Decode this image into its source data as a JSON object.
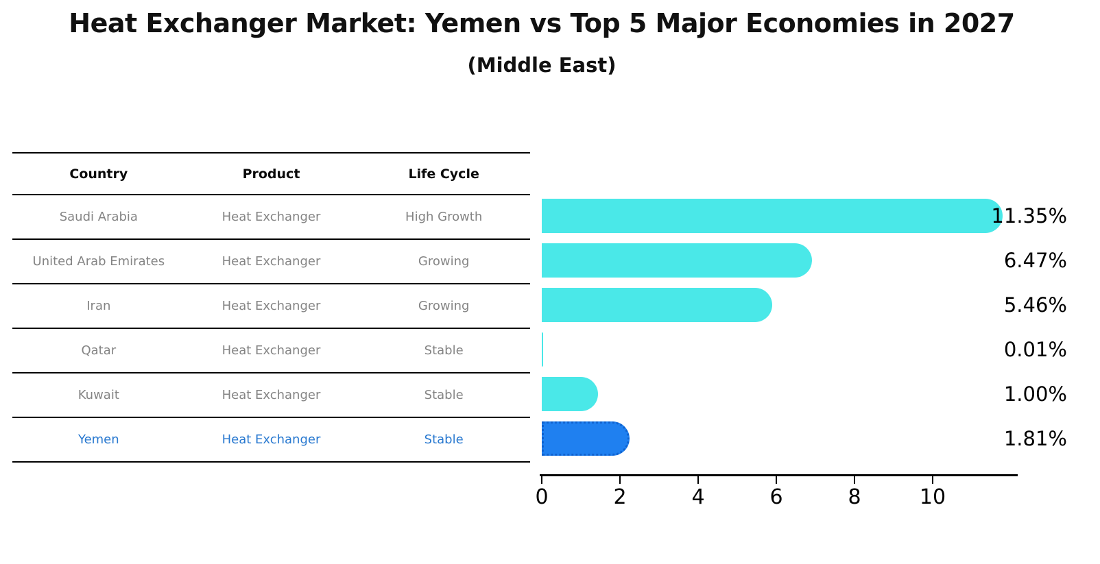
{
  "title": "Heat Exchanger Market: Yemen vs Top 5 Major Economies in 2027",
  "subtitle": "(Middle East)",
  "table": {
    "headers": [
      "Country",
      "Product",
      "Life Cycle"
    ],
    "rows": [
      {
        "country": "Saudi Arabia",
        "product": "Heat Exchanger",
        "life_cycle": "High Growth",
        "highlight": false
      },
      {
        "country": "United Arab Emirates",
        "product": "Heat Exchanger",
        "life_cycle": "Growing",
        "highlight": false
      },
      {
        "country": "Iran",
        "product": "Heat Exchanger",
        "life_cycle": "Growing",
        "highlight": false
      },
      {
        "country": "Qatar",
        "product": "Heat Exchanger",
        "life_cycle": "Stable",
        "highlight": false
      },
      {
        "country": "Kuwait",
        "product": "Heat Exchanger",
        "life_cycle": "Stable",
        "highlight": false
      },
      {
        "country": "Yemen",
        "product": "Heat Exchanger",
        "life_cycle": "Stable",
        "highlight": true
      }
    ]
  },
  "chart_data": {
    "type": "bar",
    "orientation": "horizontal",
    "title": "Heat Exchanger Market: Yemen vs Top 5 Major Economies in 2027",
    "subtitle": "(Middle East)",
    "categories": [
      "Saudi Arabia",
      "United Arab Emirates",
      "Iran",
      "Qatar",
      "Kuwait",
      "Yemen"
    ],
    "values": [
      11.35,
      6.47,
      5.46,
      0.01,
      1.0,
      1.81
    ],
    "value_labels": [
      "11.35%",
      "6.47%",
      "5.46%",
      "0.01%",
      "1.00%",
      "1.81%"
    ],
    "xticks": [
      "0",
      "2",
      "4",
      "6",
      "8",
      "10"
    ],
    "xlim": [
      0,
      12.2
    ],
    "unit": "%",
    "grid": false,
    "legend": false,
    "bar_color": "#4AE8E8",
    "highlight_index": 5,
    "highlight_bar_color": "#1F80F0",
    "highlight_edge_color": "#0F62CF",
    "highlight_text_color": "#2979D0"
  },
  "colors": {
    "bar_cyan": "#4AE8E8",
    "bar_blue": "#1F80F0",
    "highlight_text": "#2979D0",
    "table_text_gray": "#848484",
    "heading_text": "#111111",
    "axis_black": "#000000",
    "background": "#FFFFFF"
  }
}
